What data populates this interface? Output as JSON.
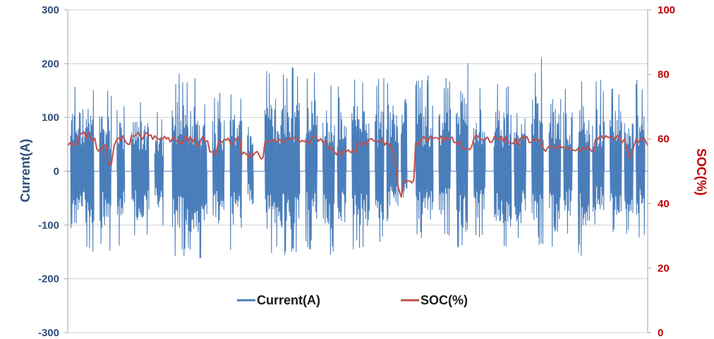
{
  "chart_data": {
    "type": "line",
    "title": "",
    "xlabel": "",
    "y_left": {
      "label": "Current(A)",
      "ylim": [
        -300,
        300
      ],
      "ticks": [
        -300,
        -200,
        -100,
        0,
        100,
        200,
        300
      ],
      "tick_labels": [
        "-300",
        "-200",
        "-100",
        "0",
        "100",
        "200",
        "300"
      ],
      "color": "#2f4f7a"
    },
    "y_right": {
      "label": "SOC(%)",
      "ylim": [
        0,
        100
      ],
      "ticks": [
        0,
        20,
        40,
        60,
        80,
        100
      ],
      "tick_labels": [
        "0",
        "20",
        "40",
        "60",
        "80",
        "100"
      ],
      "color": "#c00000"
    },
    "grid": true,
    "legend_position": "bottom-center",
    "series": [
      {
        "name": "Current(A)",
        "axis": "left",
        "color": "#4a7ebb",
        "baseline": 0,
        "segments": [
          {
            "start": 0.005,
            "end": 0.045,
            "high": 170,
            "low": -150
          },
          {
            "start": 0.055,
            "end": 0.075,
            "high": 160,
            "low": -150
          },
          {
            "start": 0.085,
            "end": 0.098,
            "high": 130,
            "low": -140
          },
          {
            "start": 0.11,
            "end": 0.14,
            "high": 135,
            "low": -130
          },
          {
            "start": 0.15,
            "end": 0.165,
            "high": 110,
            "low": -100
          },
          {
            "start": 0.18,
            "end": 0.24,
            "high": 185,
            "low": -165
          },
          {
            "start": 0.25,
            "end": 0.27,
            "high": 150,
            "low": -140
          },
          {
            "start": 0.28,
            "end": 0.3,
            "high": 150,
            "low": -150
          },
          {
            "start": 0.31,
            "end": 0.32,
            "high": 120,
            "low": -90
          },
          {
            "start": 0.34,
            "end": 0.4,
            "high": 195,
            "low": -160
          },
          {
            "start": 0.41,
            "end": 0.43,
            "high": 200,
            "low": -150
          },
          {
            "start": 0.44,
            "end": 0.46,
            "high": 165,
            "low": -160
          },
          {
            "start": 0.465,
            "end": 0.48,
            "high": 160,
            "low": -140
          },
          {
            "start": 0.49,
            "end": 0.52,
            "high": 175,
            "low": -150
          },
          {
            "start": 0.53,
            "end": 0.545,
            "high": 175,
            "low": -140
          },
          {
            "start": 0.55,
            "end": 0.57,
            "high": 180,
            "low": -100
          },
          {
            "start": 0.575,
            "end": 0.585,
            "high": 205,
            "low": -80
          },
          {
            "start": 0.6,
            "end": 0.63,
            "high": 180,
            "low": -130
          },
          {
            "start": 0.64,
            "end": 0.66,
            "high": 180,
            "low": -120
          },
          {
            "start": 0.67,
            "end": 0.69,
            "high": 215,
            "low": -160
          },
          {
            "start": 0.7,
            "end": 0.72,
            "high": 175,
            "low": -125
          },
          {
            "start": 0.735,
            "end": 0.765,
            "high": 170,
            "low": -155
          },
          {
            "start": 0.77,
            "end": 0.79,
            "high": 165,
            "low": -145
          },
          {
            "start": 0.8,
            "end": 0.82,
            "high": 215,
            "low": -140
          },
          {
            "start": 0.83,
            "end": 0.85,
            "high": 195,
            "low": -160
          },
          {
            "start": 0.855,
            "end": 0.87,
            "high": 160,
            "low": -120
          },
          {
            "start": 0.88,
            "end": 0.9,
            "high": 180,
            "low": -160
          },
          {
            "start": 0.905,
            "end": 0.925,
            "high": 170,
            "low": -110
          },
          {
            "start": 0.935,
            "end": 0.955,
            "high": 165,
            "low": -120
          },
          {
            "start": 0.96,
            "end": 0.975,
            "high": 140,
            "low": -120
          },
          {
            "start": 0.98,
            "end": 0.995,
            "high": 175,
            "low": -125
          }
        ]
      },
      {
        "name": "SOC(%)",
        "axis": "right",
        "color": "#c0504d",
        "x": [
          0.0,
          0.005,
          0.02,
          0.04,
          0.05,
          0.06,
          0.07,
          0.075,
          0.08,
          0.085,
          0.095,
          0.1,
          0.11,
          0.125,
          0.14,
          0.15,
          0.16,
          0.17,
          0.18,
          0.19,
          0.2,
          0.215,
          0.23,
          0.245,
          0.25,
          0.26,
          0.27,
          0.28,
          0.29,
          0.3,
          0.31,
          0.32,
          0.33,
          0.34,
          0.36,
          0.38,
          0.4,
          0.42,
          0.44,
          0.45,
          0.46,
          0.47,
          0.48,
          0.5,
          0.52,
          0.54,
          0.55,
          0.56,
          0.565,
          0.57,
          0.575,
          0.58,
          0.585,
          0.59,
          0.6,
          0.61,
          0.625,
          0.64,
          0.655,
          0.67,
          0.68,
          0.69,
          0.7,
          0.72,
          0.74,
          0.76,
          0.78,
          0.8,
          0.82,
          0.84,
          0.86,
          0.88,
          0.9,
          0.91,
          0.92,
          0.94,
          0.96,
          0.965,
          0.97,
          0.975,
          0.98,
          0.99,
          1.0
        ],
        "values": [
          58,
          59,
          61,
          60,
          57,
          57,
          52,
          52,
          58,
          60,
          61,
          59,
          61,
          61,
          61,
          61,
          60,
          60,
          60,
          59,
          60,
          59,
          60,
          56,
          56,
          59,
          60,
          59,
          60,
          55,
          55,
          55,
          55,
          59,
          59,
          60,
          59,
          60,
          59,
          57,
          56,
          56,
          56,
          59,
          60,
          59,
          59,
          57,
          52,
          45,
          42,
          47,
          47,
          47,
          59,
          60,
          61,
          60,
          60,
          59,
          57,
          57,
          60,
          60,
          60,
          59,
          60,
          59,
          57,
          57,
          57,
          57,
          57,
          60,
          61,
          60,
          60,
          56,
          54,
          57,
          60,
          60,
          58
        ]
      }
    ]
  }
}
